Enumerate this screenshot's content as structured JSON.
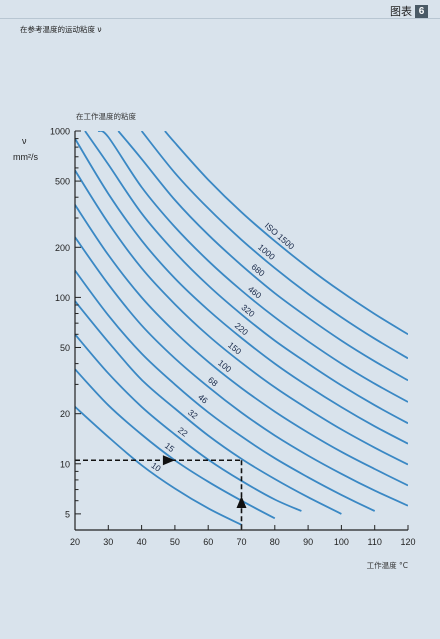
{
  "header": {
    "label": "图表",
    "number": "6"
  },
  "page_title": "在参考温度的运动粘度 ν",
  "chart_data": {
    "type": "line",
    "title": "",
    "subtitle": "在工作温度的粘度",
    "xlabel": "工作温度 °C",
    "ylabel_symbol": "ν",
    "ylabel_unit": "mm²/s",
    "xlim": [
      20,
      120
    ],
    "ylim": [
      4,
      1000
    ],
    "y_scale": "log",
    "x_ticks": [
      20,
      30,
      40,
      50,
      60,
      70,
      80,
      90,
      100,
      110,
      120
    ],
    "y_ticks": [
      5,
      10,
      20,
      50,
      100,
      200,
      500,
      1000
    ],
    "grid": false,
    "series": [
      {
        "name": "10",
        "ref": 10,
        "label_x": 42,
        "points": [
          [
            20,
            22
          ],
          [
            30,
            14.5
          ],
          [
            40,
            9.8
          ],
          [
            50,
            7.1
          ],
          [
            60,
            5.4
          ],
          [
            70,
            4.3
          ]
        ]
      },
      {
        "name": "15",
        "ref": 15,
        "label_x": 46,
        "points": [
          [
            20,
            37
          ],
          [
            30,
            22.5
          ],
          [
            40,
            15
          ],
          [
            50,
            10.5
          ],
          [
            60,
            7.8
          ],
          [
            70,
            6
          ],
          [
            80,
            4.7
          ]
        ]
      },
      {
        "name": "22",
        "ref": 22,
        "label_x": 50,
        "points": [
          [
            20,
            60
          ],
          [
            30,
            35
          ],
          [
            40,
            22
          ],
          [
            50,
            15
          ],
          [
            60,
            10.6
          ],
          [
            70,
            7.9
          ],
          [
            80,
            6.1
          ],
          [
            88,
            5.2
          ]
        ]
      },
      {
        "name": "32",
        "ref": 32,
        "label_x": 53,
        "points": [
          [
            20,
            95
          ],
          [
            30,
            54
          ],
          [
            40,
            32
          ],
          [
            50,
            21.5
          ],
          [
            60,
            14.8
          ],
          [
            70,
            10.7
          ],
          [
            80,
            8.1
          ],
          [
            90,
            6.3
          ],
          [
            100,
            5
          ]
        ]
      },
      {
        "name": "46",
        "ref": 46,
        "label_x": 56,
        "points": [
          [
            20,
            145
          ],
          [
            30,
            78
          ],
          [
            40,
            46
          ],
          [
            50,
            30
          ],
          [
            60,
            20.4
          ],
          [
            70,
            14.6
          ],
          [
            80,
            10.8
          ],
          [
            90,
            8.3
          ],
          [
            100,
            6.5
          ],
          [
            110,
            5.2
          ]
        ]
      },
      {
        "name": "68",
        "ref": 68,
        "label_x": 59,
        "points": [
          [
            20,
            230
          ],
          [
            30,
            120
          ],
          [
            40,
            68
          ],
          [
            50,
            43
          ],
          [
            60,
            29
          ],
          [
            70,
            20.3
          ],
          [
            80,
            14.8
          ],
          [
            90,
            11.2
          ],
          [
            100,
            8.7
          ],
          [
            110,
            6.9
          ],
          [
            120,
            5.6
          ]
        ]
      },
      {
        "name": "100",
        "ref": 100,
        "label_x": 62,
        "points": [
          [
            20,
            360
          ],
          [
            30,
            180
          ],
          [
            40,
            100
          ],
          [
            50,
            62
          ],
          [
            60,
            41
          ],
          [
            70,
            28.5
          ],
          [
            80,
            20.6
          ],
          [
            90,
            15.4
          ],
          [
            100,
            11.8
          ],
          [
            110,
            9.3
          ],
          [
            120,
            7.4
          ]
        ]
      },
      {
        "name": "150",
        "ref": 150,
        "label_x": 65,
        "points": [
          [
            20,
            580
          ],
          [
            30,
            280
          ],
          [
            40,
            150
          ],
          [
            50,
            91
          ],
          [
            60,
            59
          ],
          [
            70,
            40.5
          ],
          [
            80,
            28.8
          ],
          [
            90,
            21.3
          ],
          [
            100,
            16.1
          ],
          [
            110,
            12.5
          ],
          [
            120,
            9.9
          ]
        ]
      },
      {
        "name": "220",
        "ref": 220,
        "label_x": 67,
        "points": [
          [
            20,
            900
          ],
          [
            30,
            420
          ],
          [
            40,
            220
          ],
          [
            50,
            130
          ],
          [
            60,
            84
          ],
          [
            70,
            57
          ],
          [
            80,
            40
          ],
          [
            90,
            29.2
          ],
          [
            100,
            21.9
          ],
          [
            110,
            16.8
          ],
          [
            120,
            13.2
          ]
        ]
      },
      {
        "name": "320",
        "ref": 320,
        "label_x": 69,
        "points": [
          [
            23,
            1000
          ],
          [
            30,
            630
          ],
          [
            40,
            320
          ],
          [
            50,
            187
          ],
          [
            60,
            118
          ],
          [
            70,
            79
          ],
          [
            80,
            55
          ],
          [
            90,
            40
          ],
          [
            100,
            29.6
          ],
          [
            110,
            22.5
          ],
          [
            120,
            17.5
          ]
        ]
      },
      {
        "name": "460",
        "ref": 460,
        "label_x": 71,
        "points": [
          [
            27,
            1000
          ],
          [
            30,
            920
          ],
          [
            40,
            460
          ],
          [
            50,
            265
          ],
          [
            60,
            166
          ],
          [
            70,
            110
          ],
          [
            80,
            76
          ],
          [
            90,
            54.5
          ],
          [
            100,
            40
          ],
          [
            110,
            30.3
          ],
          [
            120,
            23.5
          ]
        ]
      },
      {
        "name": "680",
        "ref": 680,
        "label_x": 72,
        "points": [
          [
            33,
            1000
          ],
          [
            40,
            680
          ],
          [
            50,
            385
          ],
          [
            60,
            238
          ],
          [
            70,
            156
          ],
          [
            80,
            106
          ],
          [
            90,
            75.5
          ],
          [
            100,
            55
          ],
          [
            110,
            41.3
          ],
          [
            120,
            31.7
          ]
        ]
      },
      {
        "name": "1000",
        "ref": 1000,
        "label_x": 74,
        "points": [
          [
            40,
            1000
          ],
          [
            50,
            560
          ],
          [
            60,
            343
          ],
          [
            70,
            222
          ],
          [
            80,
            150
          ],
          [
            90,
            105
          ],
          [
            100,
            76
          ],
          [
            110,
            56.5
          ],
          [
            120,
            43
          ]
        ]
      },
      {
        "name": "ISO 1500",
        "ref": 1500,
        "label_x": 76,
        "points": [
          [
            47,
            1000
          ],
          [
            50,
            850
          ],
          [
            60,
            510
          ],
          [
            70,
            325
          ],
          [
            80,
            218
          ],
          [
            90,
            151
          ],
          [
            100,
            108
          ],
          [
            110,
            79.5
          ],
          [
            120,
            60
          ]
        ]
      }
    ],
    "example": {
      "ref_viscosity": 10,
      "start_x": 20,
      "start_y": 10.5,
      "temperature": 70
    }
  },
  "colors": {
    "curve": "#3a88c4",
    "axis": "#222222",
    "arrow": "#111111"
  }
}
